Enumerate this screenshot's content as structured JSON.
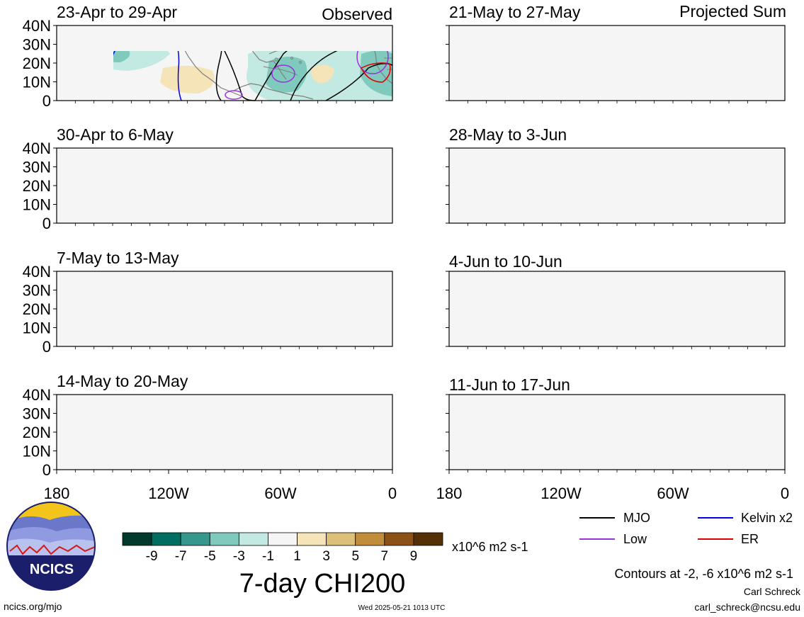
{
  "figure": {
    "title": "7-day CHI200",
    "source_url": "ncics.org/mjo",
    "timestamp": "Wed 2025-05-21 1013 UTC",
    "author": "Carl Schreck",
    "email": "carl_schreck@ncsu.edu",
    "contour_note": "Contours at -2, -6 x10^6 m2 s-1",
    "logo_text": "NCICS"
  },
  "columns": {
    "left_label": "Observed",
    "right_label": "Projected Sum"
  },
  "axes": {
    "y_ticks": [
      "40N",
      "30N",
      "20N",
      "10N",
      "0"
    ],
    "x_ticks": [
      "180",
      "120W",
      "60W",
      "0"
    ],
    "lat_range": [
      0,
      40
    ],
    "lon_range": [
      -180,
      0
    ]
  },
  "panels": [
    {
      "id": "obs1",
      "title": "23-Apr to 29-Apr",
      "column": "observed",
      "row": 0
    },
    {
      "id": "obs2",
      "title": "30-Apr to 6-May",
      "column": "observed",
      "row": 1
    },
    {
      "id": "obs3",
      "title": "7-May to 13-May",
      "column": "observed",
      "row": 2
    },
    {
      "id": "obs4",
      "title": "14-May to 20-May",
      "column": "observed",
      "row": 3
    },
    {
      "id": "prj1",
      "title": "21-May to 27-May",
      "column": "projected",
      "row": 0
    },
    {
      "id": "prj2",
      "title": "28-May to 3-Jun",
      "column": "projected",
      "row": 1
    },
    {
      "id": "prj3",
      "title": "4-Jun to 10-Jun",
      "column": "projected",
      "row": 2
    },
    {
      "id": "prj4",
      "title": "11-Jun to 17-Jun",
      "column": "projected",
      "row": 3
    }
  ],
  "colorbar": {
    "units": "x10^6 m2 s-1",
    "labels": [
      "-9",
      "-7",
      "-5",
      "-3",
      "-1",
      "1",
      "3",
      "5",
      "7",
      "9"
    ],
    "colors": [
      "#01392c",
      "#006f62",
      "#36978f",
      "#7fc9bd",
      "#c3e9e3",
      "#f5f5f5",
      "#f5e4b8",
      "#dcc07a",
      "#c18d3b",
      "#8c5117",
      "#533006"
    ]
  },
  "legend": [
    {
      "label": "MJO",
      "color": "#000000"
    },
    {
      "label": "Kelvin x2",
      "color": "#0000e0"
    },
    {
      "label": "Low",
      "color": "#9933dd"
    },
    {
      "label": "ER",
      "color": "#e00000"
    }
  ],
  "colors": {
    "mjo": "#000000",
    "kelvin": "#0000e0",
    "low": "#9933dd",
    "er": "#e00000",
    "coast": "#808080"
  }
}
